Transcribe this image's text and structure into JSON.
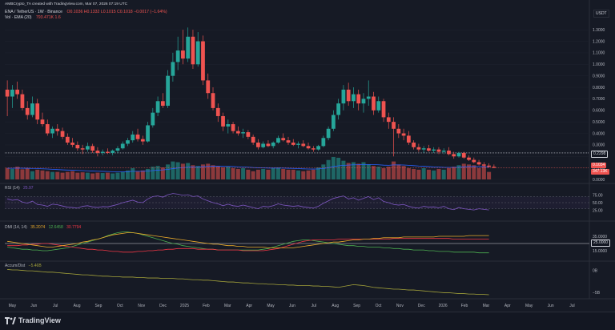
{
  "header": {
    "author_line": "AMBCrypto_TA created with TradingView.com, Mar 07, 2026 07:19 UTC",
    "symbol_line": "ENA / TetherUS · 1W · Binance",
    "ohlc": "O0.1036 H0.1332 L0.1015 C0.1018 −0.0017 (−1.64%)",
    "vol_line": "Vol · EMA (20)",
    "vol_values": "793.471K  1.6",
    "currency": "USDT"
  },
  "price_tags": {
    "level": "0.2298",
    "last": "0.1034",
    "last_vol": "347.13K"
  },
  "indicators": {
    "rsi_label": "RSI (14)",
    "rsi_value": "25.97",
    "dmi_label": "DMI (14, 14)",
    "dmi_values": [
      "35.2074",
      "12.6458",
      "30.7794"
    ],
    "dmi_level": "25.0000",
    "ad_label": "Accum/Dist",
    "ad_value": "−5.46B"
  },
  "colors": {
    "up": "#26a69a",
    "down": "#ef5350",
    "rsi": "#7e57c2",
    "adx": "#e8a92a",
    "plus_di": "#4caf50",
    "minus_di": "#f23645",
    "ad": "#a4a33a",
    "ema": "#2962ff"
  },
  "price_axis": [
    "1.3000",
    "1.2000",
    "1.1000",
    "1.0000",
    "0.9000",
    "0.8000",
    "0.7000",
    "0.6000",
    "0.5000",
    "0.4000",
    "0.3000",
    "0.2000",
    "0.1000",
    "0.0000"
  ],
  "rsi_axis": [
    "75.00",
    "50.00",
    "25.00"
  ],
  "dmi_axis": [
    "35.0000",
    "15.0000"
  ],
  "ad_axis": [
    "0B",
    "−5B"
  ],
  "time_axis": [
    "May",
    "Jun",
    "Jul",
    "Aug",
    "Sep",
    "Oct",
    "Nov",
    "Dec",
    "2025",
    "Feb",
    "Mar",
    "Apr",
    "May",
    "Jun",
    "Jul",
    "Aug",
    "Sep",
    "Oct",
    "Nov",
    "Dec",
    "2026",
    "Feb",
    "Mar",
    "Apr",
    "May",
    "Jun",
    "Jul"
  ],
  "footer": {
    "brand": "TradingView"
  },
  "chart_data": {
    "type": "candlestick",
    "symbol": "ENA / TetherUS",
    "interval": "1W",
    "y_range": [
      0,
      1.35
    ],
    "candles": [
      {
        "o": 0.78,
        "h": 0.86,
        "l": 0.55,
        "c": 0.72
      },
      {
        "o": 0.72,
        "h": 0.82,
        "l": 0.62,
        "c": 0.78
      },
      {
        "o": 0.78,
        "h": 0.85,
        "l": 0.7,
        "c": 0.74
      },
      {
        "o": 0.74,
        "h": 0.78,
        "l": 0.6,
        "c": 0.62
      },
      {
        "o": 0.62,
        "h": 0.68,
        "l": 0.52,
        "c": 0.56
      },
      {
        "o": 0.56,
        "h": 0.72,
        "l": 0.54,
        "c": 0.66
      },
      {
        "o": 0.66,
        "h": 0.7,
        "l": 0.48,
        "c": 0.52
      },
      {
        "o": 0.52,
        "h": 0.58,
        "l": 0.46,
        "c": 0.48
      },
      {
        "o": 0.48,
        "h": 0.52,
        "l": 0.38,
        "c": 0.4
      },
      {
        "o": 0.4,
        "h": 0.46,
        "l": 0.36,
        "c": 0.44
      },
      {
        "o": 0.44,
        "h": 0.48,
        "l": 0.38,
        "c": 0.42
      },
      {
        "o": 0.42,
        "h": 0.45,
        "l": 0.35,
        "c": 0.37
      },
      {
        "o": 0.37,
        "h": 0.4,
        "l": 0.3,
        "c": 0.32
      },
      {
        "o": 0.32,
        "h": 0.36,
        "l": 0.28,
        "c": 0.3
      },
      {
        "o": 0.3,
        "h": 0.33,
        "l": 0.25,
        "c": 0.27
      },
      {
        "o": 0.27,
        "h": 0.3,
        "l": 0.22,
        "c": 0.26
      },
      {
        "o": 0.26,
        "h": 0.32,
        "l": 0.24,
        "c": 0.29
      },
      {
        "o": 0.29,
        "h": 0.31,
        "l": 0.23,
        "c": 0.25
      },
      {
        "o": 0.25,
        "h": 0.28,
        "l": 0.2,
        "c": 0.23
      },
      {
        "o": 0.23,
        "h": 0.26,
        "l": 0.21,
        "c": 0.24
      },
      {
        "o": 0.24,
        "h": 0.27,
        "l": 0.22,
        "c": 0.23
      },
      {
        "o": 0.23,
        "h": 0.26,
        "l": 0.21,
        "c": 0.25
      },
      {
        "o": 0.25,
        "h": 0.29,
        "l": 0.23,
        "c": 0.27
      },
      {
        "o": 0.27,
        "h": 0.33,
        "l": 0.26,
        "c": 0.31
      },
      {
        "o": 0.31,
        "h": 0.36,
        "l": 0.29,
        "c": 0.34
      },
      {
        "o": 0.34,
        "h": 0.42,
        "l": 0.32,
        "c": 0.39
      },
      {
        "o": 0.39,
        "h": 0.44,
        "l": 0.33,
        "c": 0.35
      },
      {
        "o": 0.35,
        "h": 0.38,
        "l": 0.3,
        "c": 0.33
      },
      {
        "o": 0.33,
        "h": 0.5,
        "l": 0.32,
        "c": 0.47
      },
      {
        "o": 0.47,
        "h": 0.62,
        "l": 0.45,
        "c": 0.58
      },
      {
        "o": 0.58,
        "h": 0.72,
        "l": 0.55,
        "c": 0.68
      },
      {
        "o": 0.68,
        "h": 0.75,
        "l": 0.62,
        "c": 0.64
      },
      {
        "o": 0.64,
        "h": 0.95,
        "l": 0.62,
        "c": 0.9
      },
      {
        "o": 0.9,
        "h": 1.1,
        "l": 0.85,
        "c": 1.02
      },
      {
        "o": 1.02,
        "h": 1.24,
        "l": 0.95,
        "c": 1.12
      },
      {
        "o": 1.12,
        "h": 1.3,
        "l": 1.0,
        "c": 1.05
      },
      {
        "o": 1.05,
        "h": 1.32,
        "l": 1.02,
        "c": 1.24
      },
      {
        "o": 1.24,
        "h": 1.3,
        "l": 0.96,
        "c": 1.0
      },
      {
        "o": 1.0,
        "h": 1.28,
        "l": 0.98,
        "c": 1.2
      },
      {
        "o": 1.2,
        "h": 1.25,
        "l": 0.82,
        "c": 0.86
      },
      {
        "o": 0.86,
        "h": 0.92,
        "l": 0.7,
        "c": 0.75
      },
      {
        "o": 0.75,
        "h": 0.8,
        "l": 0.6,
        "c": 0.62
      },
      {
        "o": 0.62,
        "h": 0.66,
        "l": 0.5,
        "c": 0.55
      },
      {
        "o": 0.55,
        "h": 0.58,
        "l": 0.42,
        "c": 0.46
      },
      {
        "o": 0.46,
        "h": 0.52,
        "l": 0.4,
        "c": 0.48
      },
      {
        "o": 0.48,
        "h": 0.5,
        "l": 0.4,
        "c": 0.42
      },
      {
        "o": 0.42,
        "h": 0.46,
        "l": 0.38,
        "c": 0.4
      },
      {
        "o": 0.4,
        "h": 0.44,
        "l": 0.36,
        "c": 0.41
      },
      {
        "o": 0.41,
        "h": 0.43,
        "l": 0.35,
        "c": 0.37
      },
      {
        "o": 0.37,
        "h": 0.39,
        "l": 0.3,
        "c": 0.32
      },
      {
        "o": 0.32,
        "h": 0.35,
        "l": 0.26,
        "c": 0.28
      },
      {
        "o": 0.28,
        "h": 0.33,
        "l": 0.27,
        "c": 0.31
      },
      {
        "o": 0.31,
        "h": 0.34,
        "l": 0.28,
        "c": 0.29
      },
      {
        "o": 0.29,
        "h": 0.33,
        "l": 0.27,
        "c": 0.32
      },
      {
        "o": 0.32,
        "h": 0.38,
        "l": 0.31,
        "c": 0.36
      },
      {
        "o": 0.36,
        "h": 0.4,
        "l": 0.33,
        "c": 0.34
      },
      {
        "o": 0.34,
        "h": 0.37,
        "l": 0.3,
        "c": 0.32
      },
      {
        "o": 0.32,
        "h": 0.35,
        "l": 0.29,
        "c": 0.3
      },
      {
        "o": 0.3,
        "h": 0.33,
        "l": 0.27,
        "c": 0.31
      },
      {
        "o": 0.31,
        "h": 0.34,
        "l": 0.28,
        "c": 0.29
      },
      {
        "o": 0.29,
        "h": 0.32,
        "l": 0.26,
        "c": 0.27
      },
      {
        "o": 0.27,
        "h": 0.29,
        "l": 0.24,
        "c": 0.26
      },
      {
        "o": 0.26,
        "h": 0.3,
        "l": 0.25,
        "c": 0.29
      },
      {
        "o": 0.29,
        "h": 0.38,
        "l": 0.28,
        "c": 0.36
      },
      {
        "o": 0.36,
        "h": 0.46,
        "l": 0.34,
        "c": 0.44
      },
      {
        "o": 0.44,
        "h": 0.6,
        "l": 0.42,
        "c": 0.56
      },
      {
        "o": 0.56,
        "h": 0.7,
        "l": 0.52,
        "c": 0.66
      },
      {
        "o": 0.66,
        "h": 0.82,
        "l": 0.6,
        "c": 0.78
      },
      {
        "o": 0.78,
        "h": 0.84,
        "l": 0.64,
        "c": 0.68
      },
      {
        "o": 0.68,
        "h": 0.8,
        "l": 0.62,
        "c": 0.74
      },
      {
        "o": 0.74,
        "h": 0.78,
        "l": 0.6,
        "c": 0.66
      },
      {
        "o": 0.66,
        "h": 0.75,
        "l": 0.58,
        "c": 0.7
      },
      {
        "o": 0.7,
        "h": 0.86,
        "l": 0.64,
        "c": 0.72
      },
      {
        "o": 0.72,
        "h": 0.76,
        "l": 0.56,
        "c": 0.6
      },
      {
        "o": 0.6,
        "h": 0.72,
        "l": 0.58,
        "c": 0.68
      },
      {
        "o": 0.68,
        "h": 0.7,
        "l": 0.5,
        "c": 0.54
      },
      {
        "o": 0.54,
        "h": 0.58,
        "l": 0.44,
        "c": 0.5
      },
      {
        "o": 0.5,
        "h": 0.54,
        "l": 0.2,
        "c": 0.44
      },
      {
        "o": 0.44,
        "h": 0.48,
        "l": 0.36,
        "c": 0.4
      },
      {
        "o": 0.4,
        "h": 0.44,
        "l": 0.34,
        "c": 0.38
      },
      {
        "o": 0.38,
        "h": 0.42,
        "l": 0.3,
        "c": 0.32
      },
      {
        "o": 0.32,
        "h": 0.34,
        "l": 0.26,
        "c": 0.28
      },
      {
        "o": 0.28,
        "h": 0.31,
        "l": 0.24,
        "c": 0.26
      },
      {
        "o": 0.26,
        "h": 0.29,
        "l": 0.23,
        "c": 0.27
      },
      {
        "o": 0.27,
        "h": 0.3,
        "l": 0.24,
        "c": 0.25
      },
      {
        "o": 0.25,
        "h": 0.28,
        "l": 0.23,
        "c": 0.26
      },
      {
        "o": 0.26,
        "h": 0.28,
        "l": 0.22,
        "c": 0.24
      },
      {
        "o": 0.24,
        "h": 0.27,
        "l": 0.22,
        "c": 0.25
      },
      {
        "o": 0.25,
        "h": 0.28,
        "l": 0.21,
        "c": 0.22
      },
      {
        "o": 0.22,
        "h": 0.24,
        "l": 0.18,
        "c": 0.2
      },
      {
        "o": 0.2,
        "h": 0.24,
        "l": 0.19,
        "c": 0.23
      },
      {
        "o": 0.23,
        "h": 0.24,
        "l": 0.18,
        "c": 0.19
      },
      {
        "o": 0.19,
        "h": 0.21,
        "l": 0.16,
        "c": 0.17
      },
      {
        "o": 0.17,
        "h": 0.19,
        "l": 0.14,
        "c": 0.15
      },
      {
        "o": 0.15,
        "h": 0.17,
        "l": 0.12,
        "c": 0.13
      },
      {
        "o": 0.13,
        "h": 0.15,
        "l": 0.1,
        "c": 0.12
      },
      {
        "o": 0.12,
        "h": 0.14,
        "l": 0.1,
        "c": 0.11
      },
      {
        "o": 0.11,
        "h": 0.13,
        "l": 0.1,
        "c": 0.1
      }
    ],
    "rsi": [
      62,
      58,
      60,
      52,
      48,
      55,
      44,
      42,
      38,
      45,
      43,
      39,
      35,
      34,
      32,
      38,
      40,
      36,
      34,
      37,
      36,
      40,
      44,
      50,
      54,
      58,
      52,
      50,
      62,
      70,
      72,
      68,
      76,
      80,
      78,
      74,
      76,
      70,
      72,
      62,
      56,
      50,
      46,
      40,
      45,
      40,
      38,
      42,
      38,
      34,
      30,
      38,
      36,
      40,
      46,
      42,
      40,
      38,
      40,
      36,
      34,
      32,
      38,
      48,
      56,
      64,
      68,
      72,
      62,
      66,
      58,
      64,
      70,
      60,
      66,
      54,
      50,
      44,
      42,
      44,
      38,
      34,
      32,
      38,
      35,
      36,
      33,
      38,
      30,
      27,
      34,
      30,
      28,
      26,
      30,
      28,
      26
    ],
    "adx": [
      28,
      27,
      26,
      25,
      24,
      23,
      22,
      21,
      20,
      20,
      21,
      22,
      23,
      24,
      25,
      27,
      28,
      30,
      31,
      33,
      35,
      37,
      38,
      39,
      40,
      40,
      39,
      38,
      37,
      36,
      35,
      34,
      33,
      32,
      31,
      30,
      29,
      28,
      27,
      26,
      25,
      24,
      24,
      23,
      22,
      22,
      21,
      21,
      20,
      20,
      20,
      20,
      19,
      19,
      19,
      19,
      19,
      19,
      20,
      21,
      22,
      23,
      24,
      25,
      26,
      27,
      27,
      28,
      29,
      30,
      30,
      31,
      31,
      32,
      32,
      33,
      33,
      33,
      33,
      34,
      34,
      34,
      34,
      34,
      34,
      34,
      35,
      35,
      35,
      35,
      35,
      35,
      36,
      36,
      36,
      36,
      36
    ],
    "plus_di": [
      20,
      19,
      18,
      17,
      17,
      16,
      16,
      15,
      15,
      16,
      17,
      18,
      19,
      21,
      23,
      25,
      27,
      29,
      31,
      33,
      36,
      38,
      40,
      41,
      41,
      40,
      39,
      37,
      35,
      33,
      31,
      29,
      27,
      25,
      24,
      22,
      21,
      20,
      19,
      18,
      17,
      17,
      16,
      16,
      16,
      16,
      16,
      16,
      16,
      16,
      16,
      17,
      18,
      20,
      22,
      24,
      26,
      28,
      29,
      30,
      30,
      29,
      28,
      27,
      26,
      25,
      24,
      23,
      22,
      22,
      21,
      21,
      20,
      20,
      20,
      19,
      19,
      18,
      18,
      17,
      17,
      16,
      16,
      16,
      15,
      15,
      14,
      14,
      14,
      13,
      13,
      13,
      13,
      13,
      12,
      12,
      12
    ],
    "minus_di": [
      22,
      22,
      22,
      23,
      23,
      24,
      24,
      25,
      25,
      24,
      23,
      22,
      21,
      20,
      19,
      18,
      17,
      17,
      16,
      16,
      15,
      14,
      14,
      13,
      13,
      13,
      14,
      14,
      15,
      15,
      16,
      16,
      17,
      17,
      18,
      18,
      18,
      18,
      17,
      17,
      17,
      17,
      16,
      16,
      16,
      16,
      16,
      15,
      15,
      15,
      15,
      15,
      16,
      17,
      18,
      20,
      22,
      24,
      26,
      28,
      29,
      30,
      30,
      30,
      30,
      30,
      31,
      31,
      31,
      31,
      31,
      31,
      31,
      31,
      31,
      31,
      31,
      32,
      32,
      32,
      32,
      32,
      32,
      32,
      32,
      32,
      32,
      32,
      32,
      31,
      31,
      31,
      31,
      31,
      31,
      31,
      31
    ],
    "ad": [
      0.2,
      0.1,
      0.1,
      0.0,
      -0.1,
      -0.1,
      -0.2,
      -0.3,
      -0.4,
      -0.4,
      -0.5,
      -0.6,
      -0.7,
      -0.8,
      -0.9,
      -1.0,
      -1.0,
      -1.1,
      -1.2,
      -1.3,
      -1.3,
      -1.4,
      -1.4,
      -1.5,
      -1.5,
      -1.5,
      -1.6,
      -1.6,
      -1.7,
      -1.7,
      -1.7,
      -1.8,
      -1.8,
      -1.8,
      -1.9,
      -1.9,
      -2.0,
      -2.1,
      -2.1,
      -2.2,
      -2.2,
      -2.3,
      -2.4,
      -2.5,
      -2.6,
      -2.6,
      -2.7,
      -2.8,
      -2.8,
      -2.9,
      -3.0,
      -3.0,
      -3.1,
      -3.1,
      -3.2,
      -3.2,
      -3.3,
      -3.3,
      -3.4,
      -3.4,
      -3.4,
      -3.5,
      -3.5,
      -3.6,
      -3.6,
      -3.7,
      -3.8,
      -3.6,
      -3.4,
      -3.2,
      -3.3,
      -3.4,
      -3.6,
      -3.8,
      -3.9,
      -4.0,
      -4.1,
      -4.2,
      -4.2,
      -4.3,
      -4.4,
      -4.4,
      -4.5,
      -4.6,
      -4.7,
      -4.8,
      -4.9,
      -5.0,
      -5.0,
      -5.1,
      -5.2,
      -5.2,
      -5.3,
      -5.3,
      -5.4,
      -5.4,
      -5.46
    ],
    "volume": [
      0.3,
      0.28,
      0.34,
      0.27,
      0.3,
      0.22,
      0.26,
      0.24,
      0.22,
      0.2,
      0.2,
      0.18,
      0.2,
      0.22,
      0.18,
      0.19,
      0.18,
      0.16,
      0.18,
      0.17,
      0.18,
      0.16,
      0.18,
      0.2,
      0.24,
      0.3,
      0.22,
      0.24,
      0.28,
      0.34,
      0.36,
      0.32,
      0.4,
      0.48,
      0.46,
      0.42,
      0.44,
      0.38,
      0.36,
      0.4,
      0.42,
      0.38,
      0.36,
      0.32,
      0.34,
      0.3,
      0.28,
      0.3,
      0.26,
      0.22,
      0.26,
      0.28,
      0.26,
      0.3,
      0.32,
      0.28,
      0.26,
      0.26,
      0.24,
      0.22,
      0.24,
      0.26,
      0.32,
      0.4,
      0.52,
      0.6,
      0.58,
      0.5,
      0.44,
      0.46,
      0.42,
      0.46,
      0.4,
      0.36,
      0.34,
      0.3,
      0.34,
      0.48,
      0.4,
      0.36,
      0.3,
      0.28,
      0.26,
      0.3,
      0.26,
      0.24,
      0.28,
      0.26,
      0.3,
      0.34,
      0.38,
      0.42,
      0.4,
      0.38,
      0.3,
      0.36,
      0.2
    ]
  }
}
